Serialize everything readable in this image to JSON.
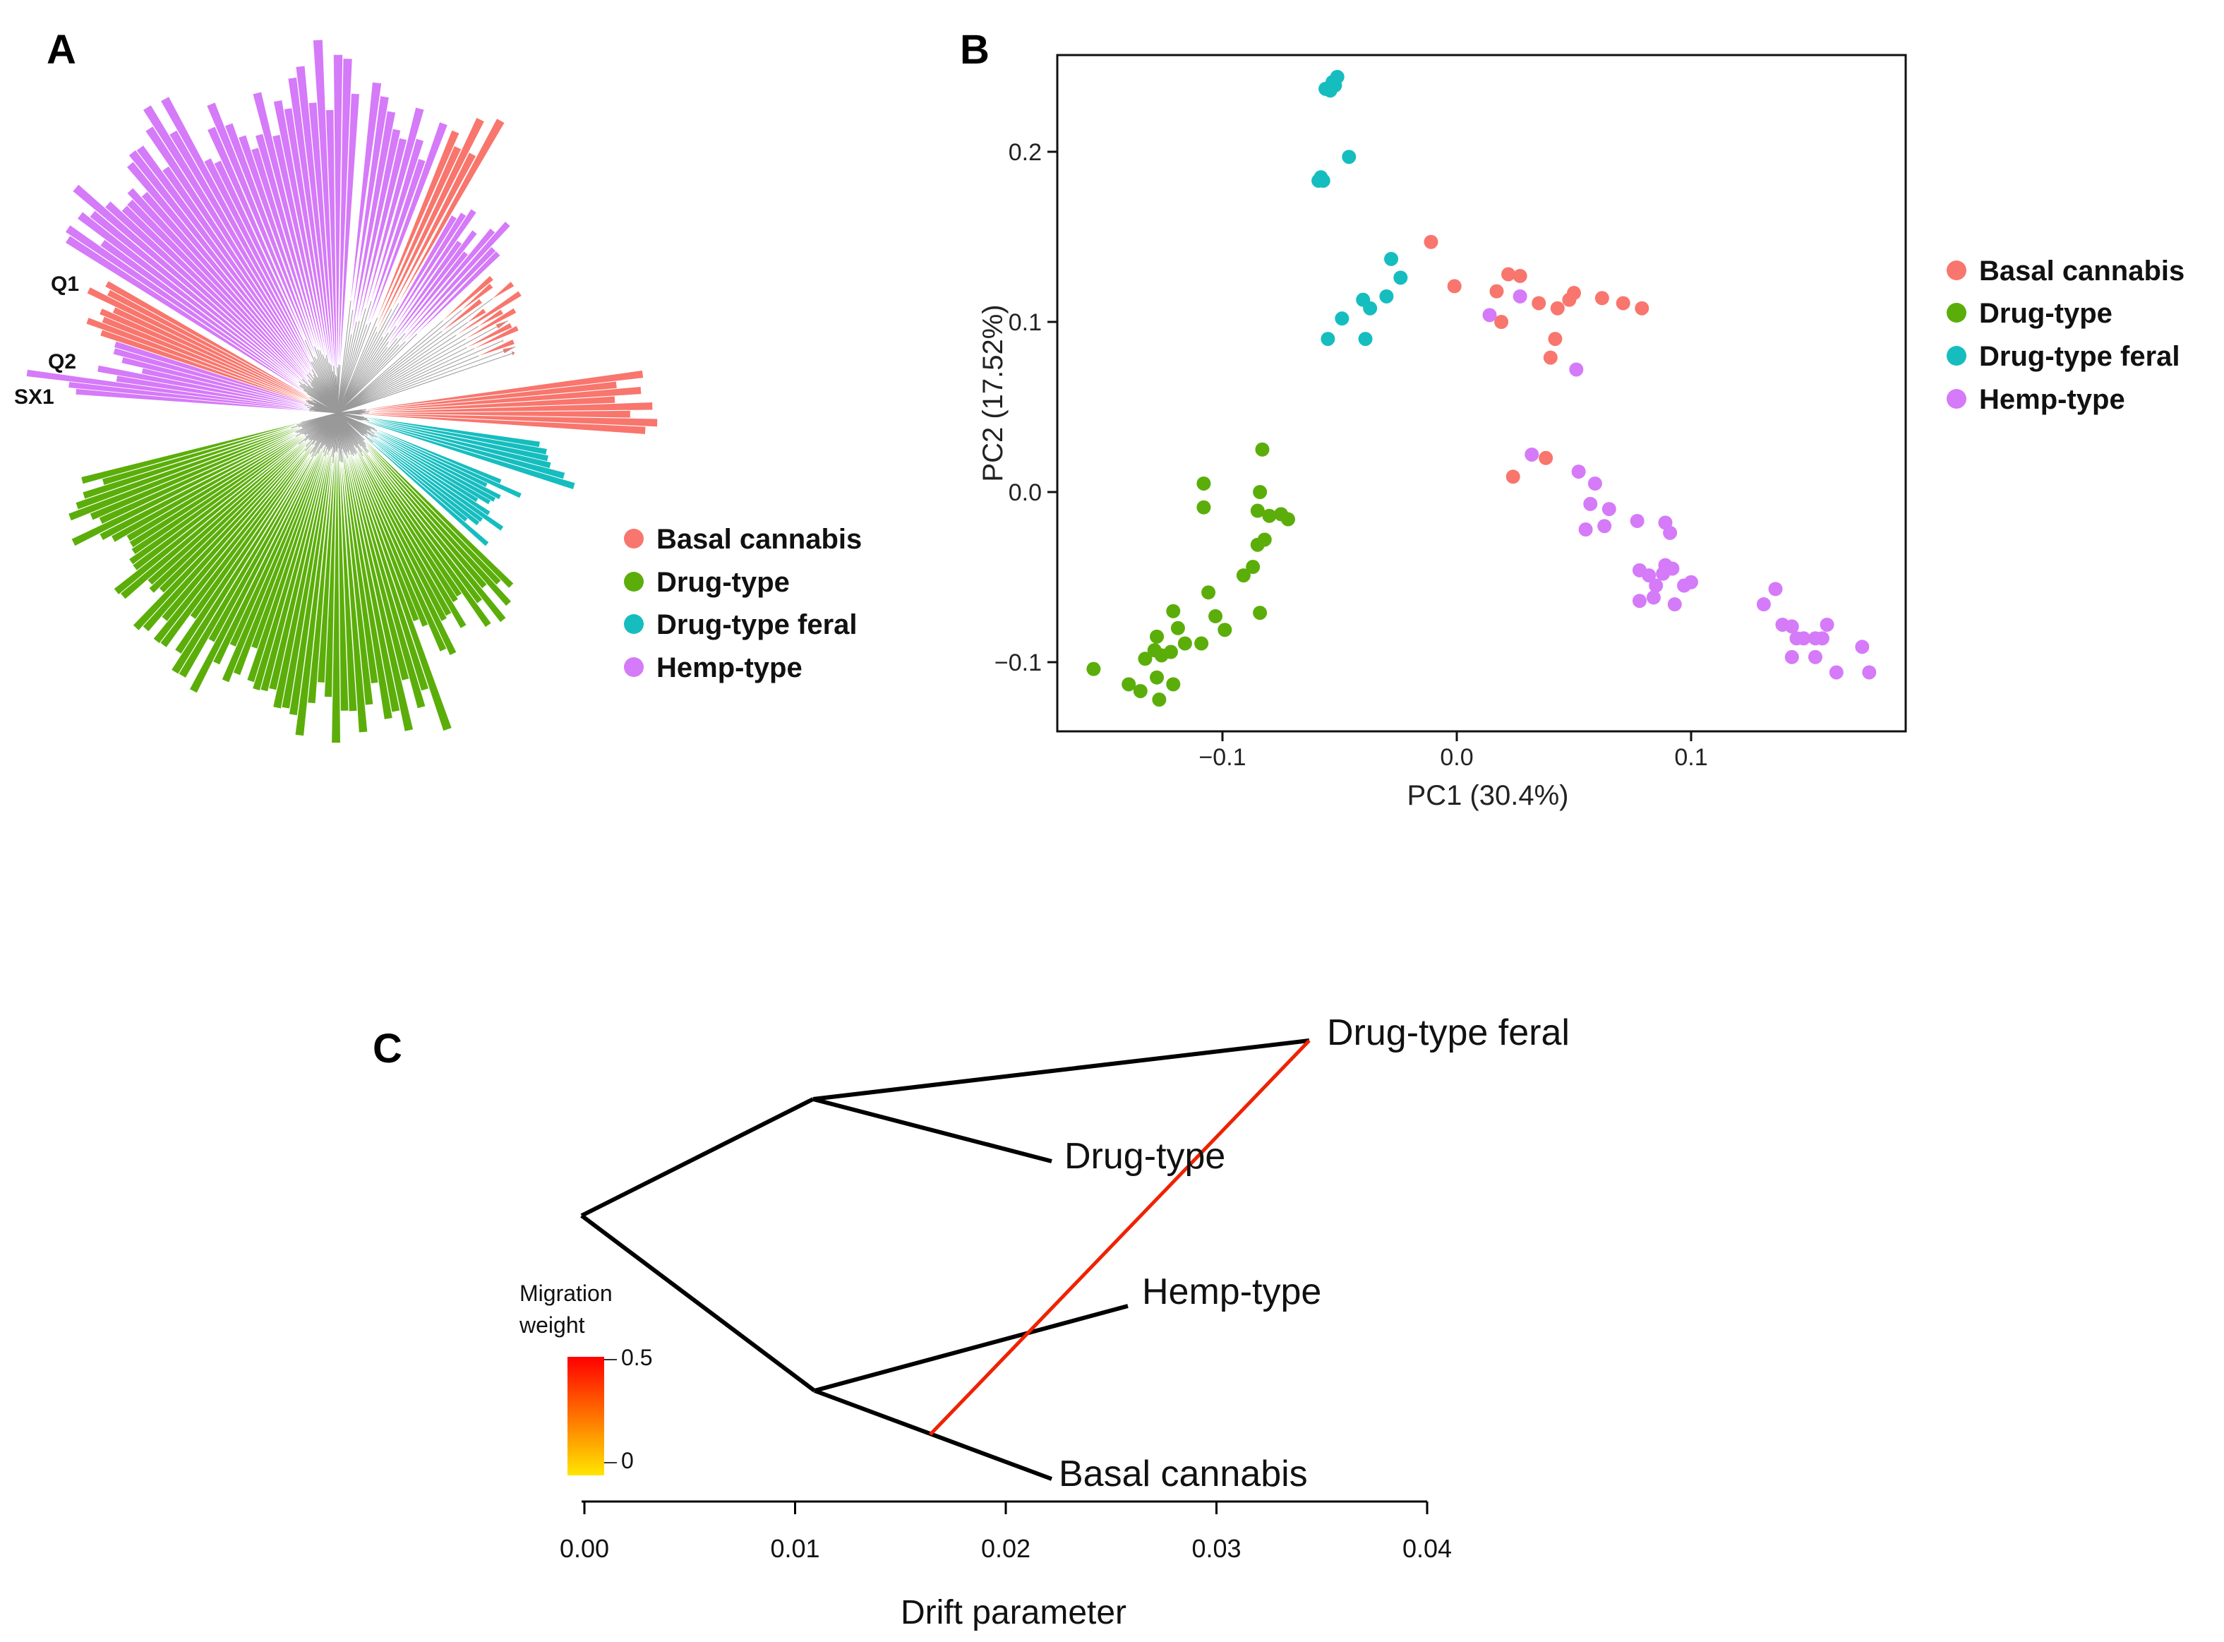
{
  "colors": {
    "basal": "#F8766D",
    "drug": "#5BAE0A",
    "feral": "#16BDBF",
    "hemp": "#D57AF8",
    "migration_high": "#FF0000",
    "migration_low": "#FFE600"
  },
  "panels": {
    "a": "A",
    "b": "B",
    "c": "C"
  },
  "chart_data": [
    {
      "type": "tree",
      "panel": "A",
      "title": "",
      "leaf_labels": [
        "Q1",
        "Q2",
        "SX1"
      ],
      "groups": [
        "Basal cannabis",
        "Drug-type",
        "Drug-type feral",
        "Hemp-type"
      ],
      "legend": [
        {
          "label": "Basal cannabis",
          "color": "#F8766D"
        },
        {
          "label": "Drug-type",
          "color": "#5BAE0A"
        },
        {
          "label": "Drug-type feral",
          "color": "#16BDBF"
        },
        {
          "label": "Hemp-type",
          "color": "#D57AF8"
        }
      ]
    },
    {
      "type": "scatter",
      "panel": "B",
      "xlabel": "PC1 (30.4%)",
      "ylabel": "PC2 (17.52%)",
      "xlim": [
        -0.17,
        0.19
      ],
      "ylim": [
        -0.14,
        0.25
      ],
      "xticks": [
        {
          "v": -0.1,
          "label": "−0.1"
        },
        {
          "v": 0.0,
          "label": "0.0"
        },
        {
          "v": 0.1,
          "label": "0.1"
        }
      ],
      "yticks": [
        {
          "v": -0.1,
          "label": "−0.1"
        },
        {
          "v": 0.0,
          "label": "0.0"
        },
        {
          "v": 0.1,
          "label": "0.1"
        },
        {
          "v": 0.2,
          "label": "0.2"
        }
      ],
      "legend": [
        {
          "label": "Basal cannabis",
          "color": "#F8766D"
        },
        {
          "label": "Drug-type",
          "color": "#5BAE0A"
        },
        {
          "label": "Drug-type feral",
          "color": "#16BDBF"
        },
        {
          "label": "Hemp-type",
          "color": "#D57AF8"
        }
      ],
      "series": [
        {
          "name": "Basal cannabis",
          "color": "#F8766D",
          "points": [
            [
              -0.011,
              0.147
            ],
            [
              -0.001,
              0.121
            ],
            [
              0.017,
              0.118
            ],
            [
              0.022,
              0.128
            ],
            [
              0.027,
              0.127
            ],
            [
              0.019,
              0.1
            ],
            [
              0.043,
              0.108
            ],
            [
              0.048,
              0.113
            ],
            [
              0.05,
              0.117
            ],
            [
              0.062,
              0.114
            ],
            [
              0.071,
              0.111
            ],
            [
              0.079,
              0.108
            ],
            [
              0.035,
              0.111
            ],
            [
              0.042,
              0.09
            ],
            [
              0.04,
              0.079
            ],
            [
              0.024,
              0.009
            ],
            [
              0.038,
              0.02
            ]
          ]
        },
        {
          "name": "Drug-type",
          "color": "#5BAE0A",
          "points": [
            [
              -0.155,
              -0.104
            ],
            [
              -0.14,
              -0.113
            ],
            [
              -0.135,
              -0.117
            ],
            [
              -0.127,
              -0.122
            ],
            [
              -0.128,
              -0.109
            ],
            [
              -0.121,
              -0.113
            ],
            [
              -0.133,
              -0.098
            ],
            [
              -0.129,
              -0.093
            ],
            [
              -0.126,
              -0.096
            ],
            [
              -0.122,
              -0.094
            ],
            [
              -0.116,
              -0.089
            ],
            [
              -0.109,
              -0.089
            ],
            [
              -0.128,
              -0.085
            ],
            [
              -0.119,
              -0.08
            ],
            [
              -0.121,
              -0.07
            ],
            [
              -0.103,
              -0.073
            ],
            [
              -0.106,
              -0.059
            ],
            [
              -0.099,
              -0.081
            ],
            [
              -0.091,
              -0.049
            ],
            [
              -0.084,
              -0.071
            ],
            [
              -0.087,
              -0.044
            ],
            [
              -0.085,
              -0.031
            ],
            [
              -0.082,
              -0.028
            ],
            [
              -0.08,
              -0.014
            ],
            [
              -0.085,
              -0.011
            ],
            [
              -0.084,
              0.0
            ],
            [
              -0.075,
              -0.013
            ],
            [
              -0.072,
              -0.016
            ],
            [
              -0.108,
              0.005
            ],
            [
              -0.108,
              -0.009
            ],
            [
              -0.083,
              0.025
            ]
          ]
        },
        {
          "name": "Drug-type feral",
          "color": "#16BDBF",
          "points": [
            [
              -0.059,
              0.183
            ],
            [
              -0.058,
              0.185
            ],
            [
              -0.057,
              0.183
            ],
            [
              -0.046,
              0.197
            ],
            [
              -0.056,
              0.237
            ],
            [
              -0.053,
              0.241
            ],
            [
              -0.054,
              0.236
            ],
            [
              -0.051,
              0.244
            ],
            [
              -0.052,
              0.239
            ],
            [
              -0.055,
              0.09
            ],
            [
              -0.049,
              0.102
            ],
            [
              -0.04,
              0.113
            ],
            [
              -0.037,
              0.108
            ],
            [
              -0.039,
              0.09
            ],
            [
              -0.028,
              0.137
            ],
            [
              -0.024,
              0.126
            ],
            [
              -0.03,
              0.115
            ]
          ]
        },
        {
          "name": "Hemp-type",
          "color": "#D57AF8",
          "points": [
            [
              0.014,
              0.104
            ],
            [
              0.027,
              0.115
            ],
            [
              0.051,
              0.072
            ],
            [
              0.032,
              0.022
            ],
            [
              0.052,
              0.012
            ],
            [
              0.059,
              0.005
            ],
            [
              0.057,
              -0.007
            ],
            [
              0.065,
              -0.01
            ],
            [
              0.055,
              -0.022
            ],
            [
              0.063,
              -0.02
            ],
            [
              0.077,
              -0.017
            ],
            [
              0.089,
              -0.018
            ],
            [
              0.091,
              -0.024
            ],
            [
              0.089,
              -0.043
            ],
            [
              0.078,
              -0.046
            ],
            [
              0.082,
              -0.049
            ],
            [
              0.088,
              -0.048
            ],
            [
              0.092,
              -0.045
            ],
            [
              0.085,
              -0.055
            ],
            [
              0.097,
              -0.055
            ],
            [
              0.084,
              -0.062
            ],
            [
              0.078,
              -0.064
            ],
            [
              0.093,
              -0.066
            ],
            [
              0.1,
              -0.053
            ],
            [
              0.136,
              -0.057
            ],
            [
              0.131,
              -0.066
            ],
            [
              0.139,
              -0.078
            ],
            [
              0.143,
              -0.079
            ],
            [
              0.145,
              -0.086
            ],
            [
              0.143,
              -0.097
            ],
            [
              0.148,
              -0.086
            ],
            [
              0.153,
              -0.086
            ],
            [
              0.153,
              -0.097
            ],
            [
              0.156,
              -0.086
            ],
            [
              0.158,
              -0.078
            ],
            [
              0.162,
              -0.106
            ],
            [
              0.173,
              -0.091
            ],
            [
              0.176,
              -0.106
            ]
          ]
        }
      ]
    },
    {
      "type": "tree",
      "panel": "C",
      "xlabel": "Drift parameter",
      "xlim": [
        0.0,
        0.04
      ],
      "xticks": [
        "0.00",
        "0.01",
        "0.02",
        "0.03",
        "0.04"
      ],
      "tips": [
        "Drug-type feral",
        "Drug-type",
        "Hemp-type",
        "Basal cannabis"
      ],
      "migration_legend": {
        "title_lines": [
          "Migration",
          "weight"
        ],
        "max_label": "0.5",
        "min_label": "0"
      }
    }
  ]
}
